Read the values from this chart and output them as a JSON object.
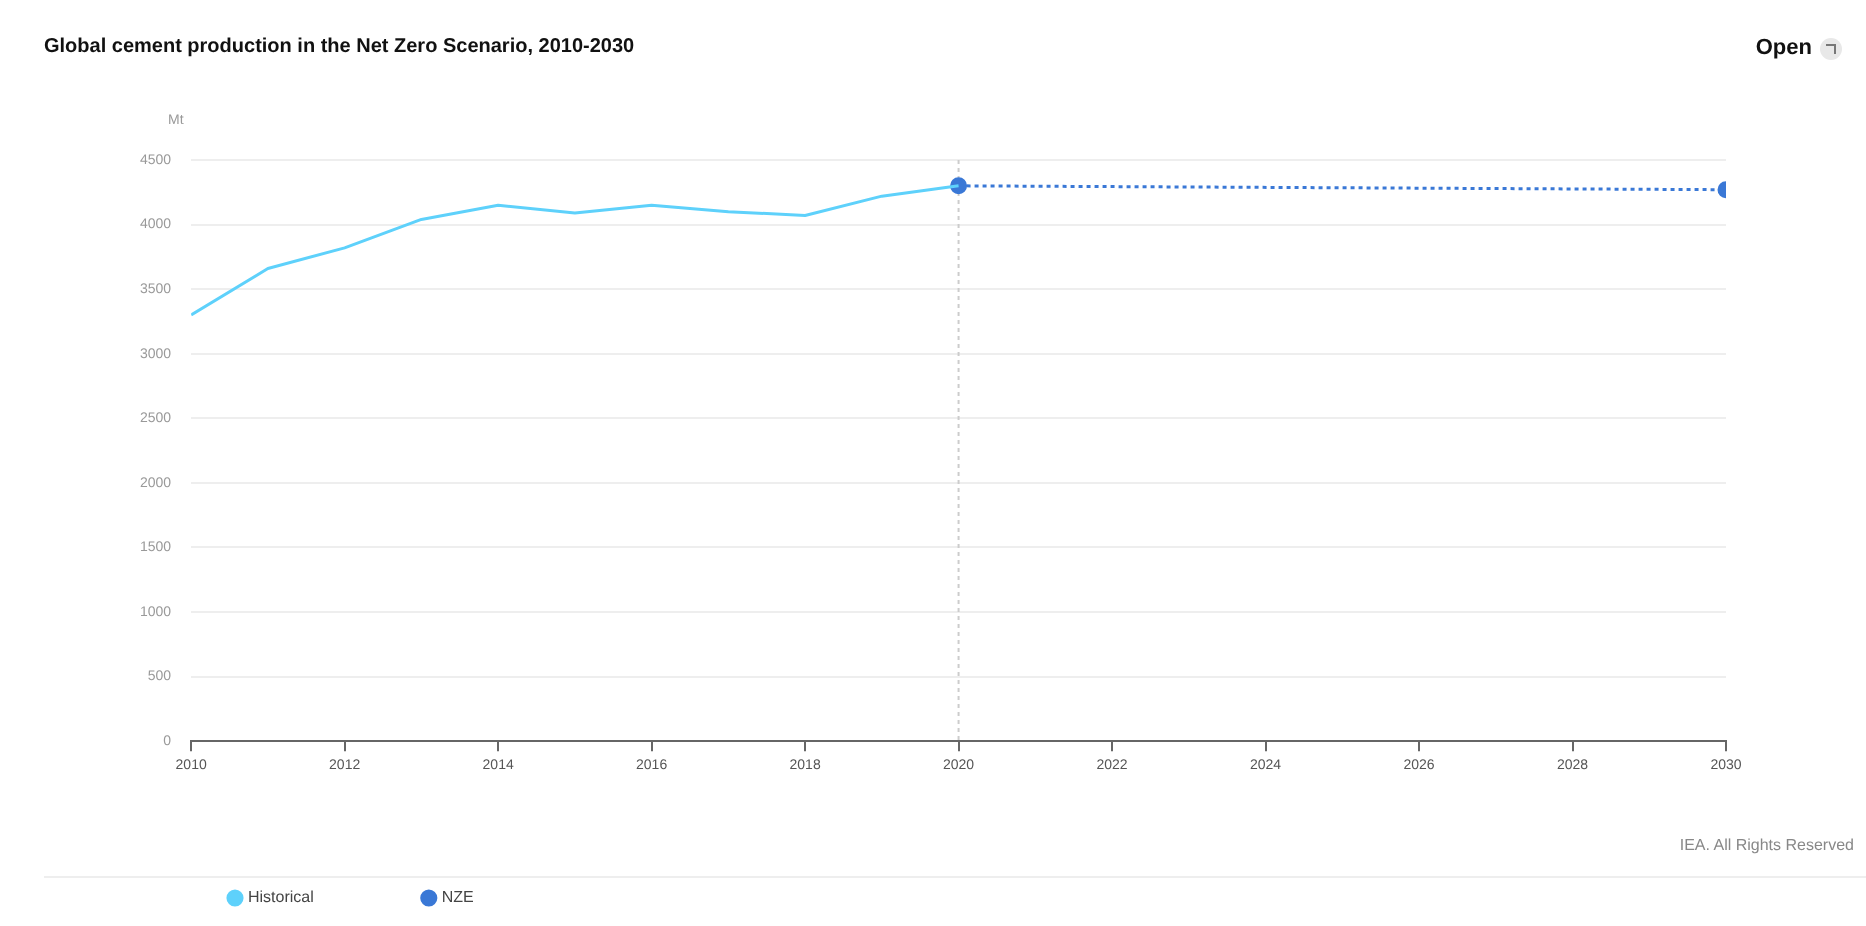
{
  "chart_data": {
    "type": "line",
    "title": "Global cement production in the Net Zero Scenario, 2010-2030",
    "ylabel": "Mt",
    "series": [
      {
        "name": "Historical",
        "color": "#5ed1fb",
        "x": [
          2010,
          2011,
          2012,
          2013,
          2014,
          2015,
          2016,
          2017,
          2018,
          2019,
          2020
        ],
        "values": [
          3300,
          3660,
          3820,
          4040,
          4150,
          4090,
          4150,
          4100,
          4070,
          4220,
          4300
        ],
        "marker": "none",
        "line_style": "solid"
      },
      {
        "name": "NZE",
        "color": "#3a78d6",
        "x": [
          2020,
          2030
        ],
        "values": [
          4300,
          4270
        ],
        "marker": "circle",
        "line_style": "dotted"
      }
    ],
    "xlim": [
      2010,
      2030
    ],
    "xticks": [
      2010,
      2012,
      2014,
      2016,
      2018,
      2020,
      2022,
      2024,
      2026,
      2028,
      2030
    ],
    "ylim": [
      0,
      4500
    ],
    "yticks": [
      0,
      500,
      1000,
      1500,
      2000,
      2500,
      3000,
      3500,
      4000,
      4500
    ],
    "ref_lines": [
      {
        "axis": "x",
        "value": 2020,
        "color": "#cccccc",
        "line_style": "dotted"
      }
    ],
    "grid": "y",
    "legend": "bottom left",
    "annotations": [
      "IEA. All Rights Reserved",
      "Open"
    ]
  }
}
